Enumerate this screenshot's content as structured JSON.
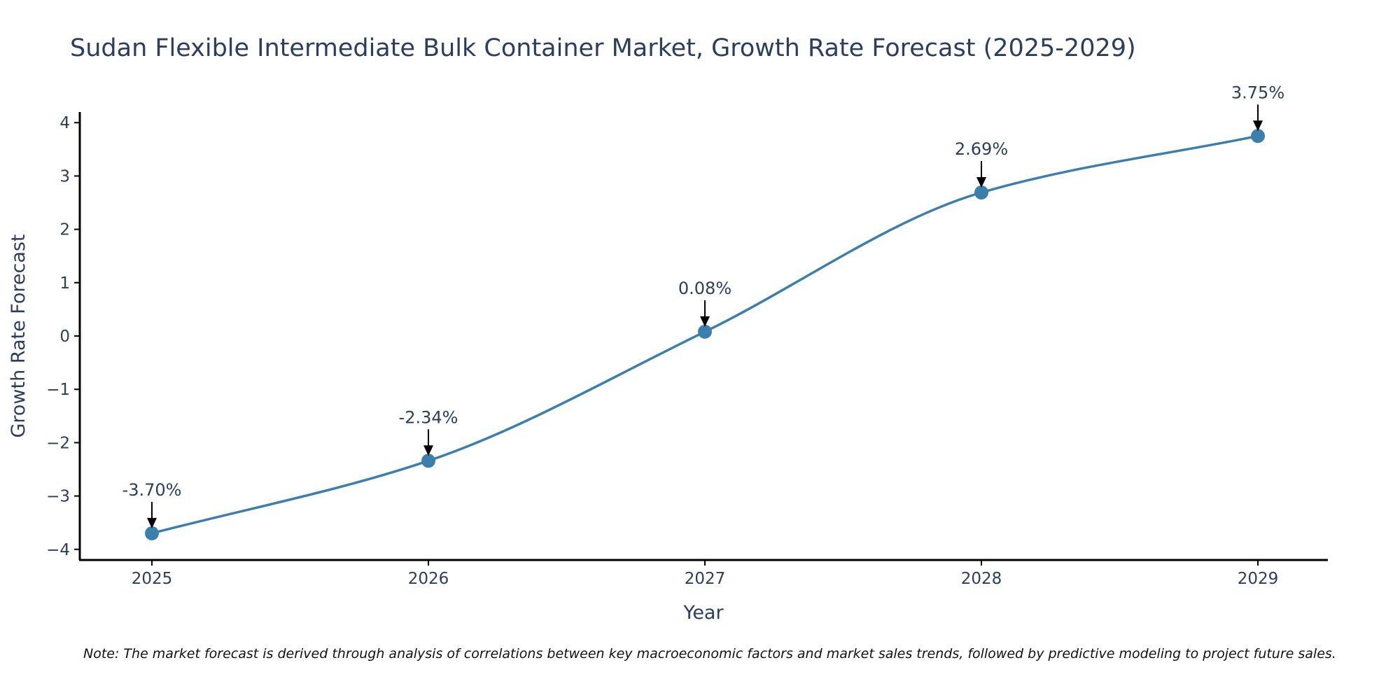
{
  "chart_data": {
    "type": "line",
    "title": "Sudan Flexible Intermediate Bulk Container Market, Growth Rate Forecast (2025-2029)",
    "xlabel": "Year",
    "ylabel": "Growth Rate Forecast",
    "categories": [
      "2025",
      "2026",
      "2027",
      "2028",
      "2029"
    ],
    "series": [
      {
        "name": "Growth Rate Forecast",
        "values": [
          -3.7,
          -2.34,
          0.08,
          2.69,
          3.75
        ],
        "labels": [
          "-3.70%",
          "-2.34%",
          "0.08%",
          "2.69%",
          "3.75%"
        ]
      }
    ],
    "ylim": [
      -4.2,
      4.2
    ],
    "yticks": [
      4,
      3,
      2,
      1,
      0,
      -1,
      -2,
      -3,
      -4
    ],
    "ytick_labels": [
      "4",
      "3",
      "2",
      "1",
      "0",
      "−1",
      "−2",
      "−3",
      "−4"
    ],
    "grid": false,
    "line_color": "#3d7fac",
    "marker_color": "#3d7fac",
    "arrow_color": "#000000",
    "note": "Note: The market forecast is derived through analysis of correlations between key macroeconomic factors and market sales trends, followed by predictive modeling to project future sales."
  }
}
